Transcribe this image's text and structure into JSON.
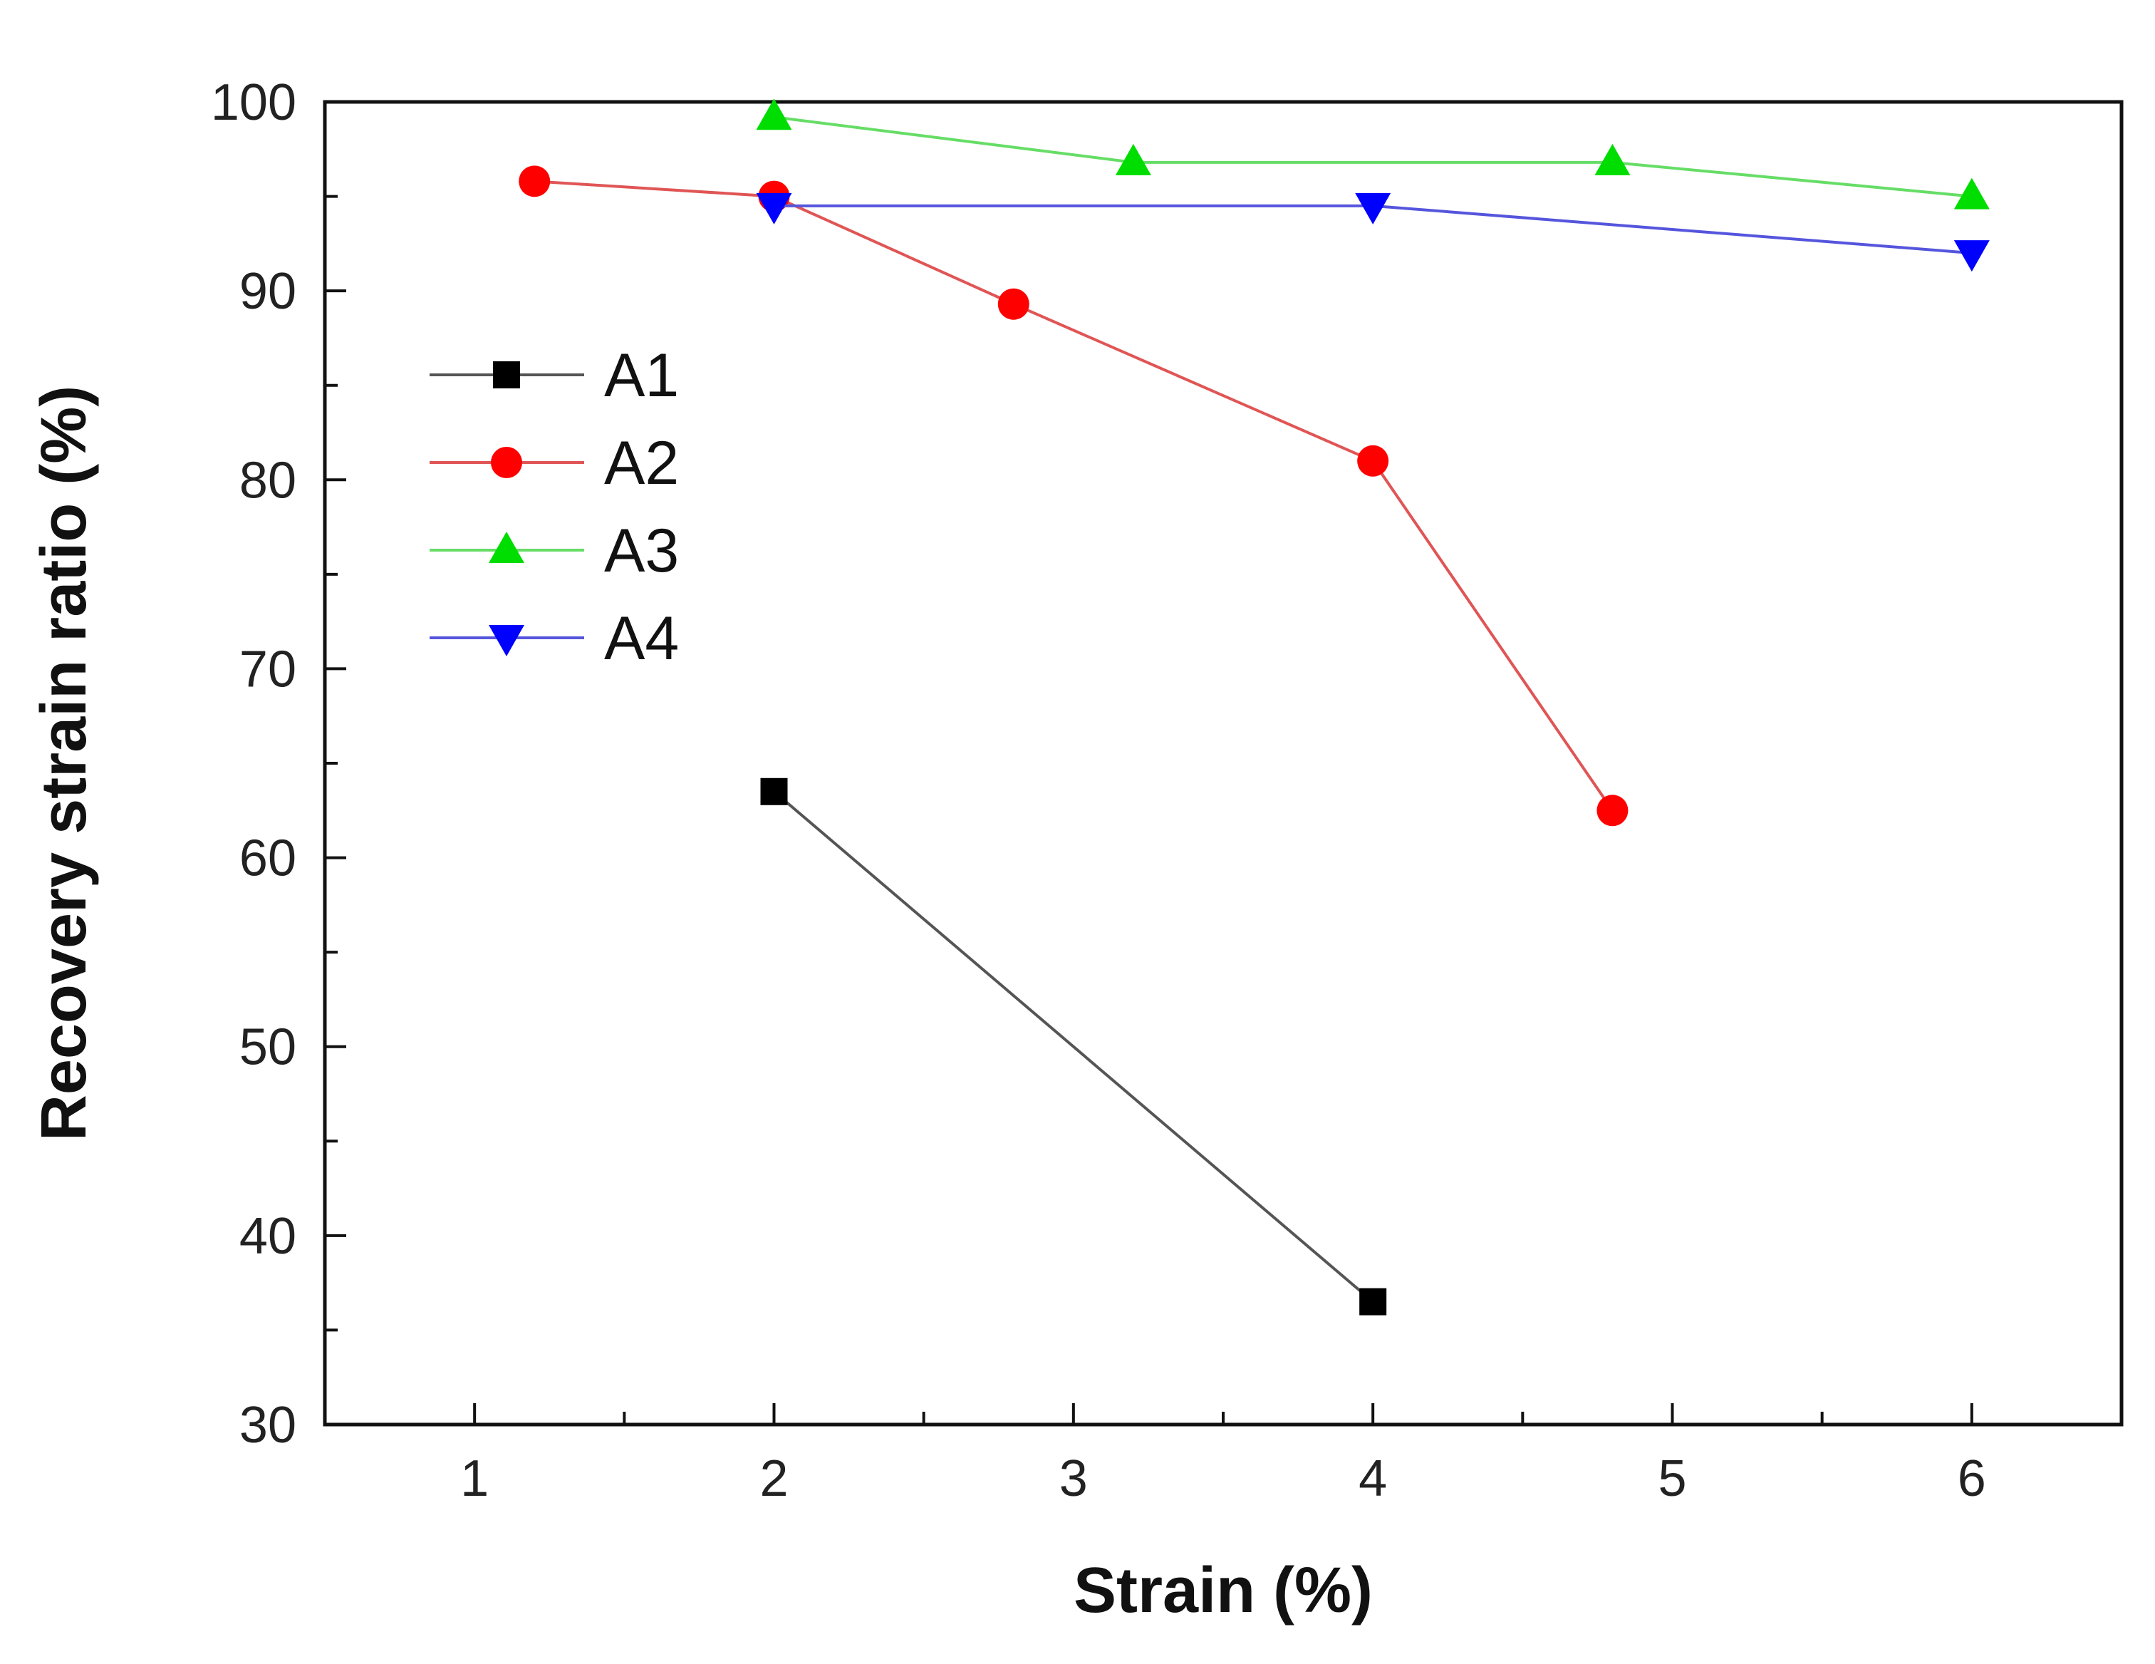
{
  "chart_data": {
    "type": "line",
    "title": "",
    "xlabel": "Strain (%)",
    "ylabel": "Recovery strain ratio (%)",
    "xlim": [
      0.5,
      6.5
    ],
    "ylim": [
      30,
      100
    ],
    "xticks": [
      1,
      2,
      3,
      4,
      5,
      6
    ],
    "xtick_labels": [
      "1",
      "2",
      "3",
      "4",
      "5",
      "6"
    ],
    "yticks": [
      30,
      40,
      50,
      60,
      70,
      80,
      90,
      100
    ],
    "ytick_labels": [
      "30",
      "40",
      "50",
      "60",
      "70",
      "80",
      "90",
      "100"
    ],
    "grid": false,
    "legend_position": "upper-left",
    "series": [
      {
        "name": "A1",
        "marker": "square",
        "color": "#000000",
        "line_color": "#555555",
        "x": [
          2,
          4
        ],
        "y": [
          63.5,
          36.5
        ]
      },
      {
        "name": "A2",
        "marker": "circle",
        "color": "#ff0000",
        "line_color": "#e05555",
        "x": [
          1.2,
          2,
          2.8,
          4,
          4.8
        ],
        "y": [
          95.8,
          95.0,
          89.3,
          81.0,
          62.5
        ]
      },
      {
        "name": "A3",
        "marker": "triangle-up",
        "color": "#00dd00",
        "line_color": "#66dd66",
        "x": [
          2,
          3.2,
          4.8,
          6
        ],
        "y": [
          99.2,
          96.8,
          96.8,
          95.0
        ]
      },
      {
        "name": "A4",
        "marker": "triangle-down",
        "color": "#0000ff",
        "line_color": "#5555dd",
        "x": [
          2,
          4,
          6
        ],
        "y": [
          94.5,
          94.5,
          92.0
        ]
      }
    ]
  }
}
